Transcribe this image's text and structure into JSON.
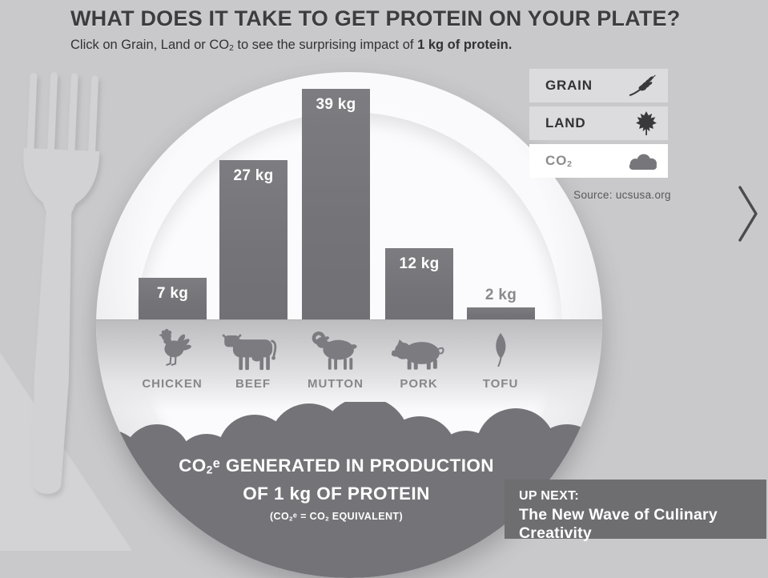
{
  "header": {
    "title": "WHAT DOES IT TAKE TO GET PROTEIN ON YOUR PLATE?",
    "subtitle": {
      "prefix": "Click on Grain, Land or CO",
      "sub": "2",
      "mid": " to see the surprising impact of ",
      "emphasis": "1 kg of protein."
    }
  },
  "legend": {
    "grain": {
      "label": "GRAIN",
      "icon": "wheat-icon",
      "active": false
    },
    "land": {
      "label": "LAND",
      "icon": "maple-leaf-icon",
      "active": false
    },
    "co2": {
      "label_prefix": "CO",
      "label_sub": "2",
      "icon": "cloud-icon",
      "active": true
    }
  },
  "chart_data": {
    "type": "bar",
    "categories": [
      "CHICKEN",
      "BEEF",
      "MUTTON",
      "PORK",
      "TOFU"
    ],
    "values": [
      7,
      27,
      39,
      12,
      2
    ],
    "value_labels": [
      "7 kg",
      "27 kg",
      "39 kg",
      "12 kg",
      "2 kg"
    ],
    "unit": "kg CO2e per 1 kg of protein",
    "icons": [
      "chicken-icon",
      "cow-icon",
      "ram-icon",
      "pig-icon",
      "leaf-icon"
    ],
    "title": "CO2e GENERATED IN PRODUCTION OF 1 kg OF PROTEIN",
    "note": "(CO2e = CO2 EQUIVALENT)",
    "source": "Source: ucsusa.org",
    "ylim": [
      0,
      39
    ],
    "grid": false,
    "legend_position": "none"
  },
  "plate_caption": {
    "l1_pre": "CO",
    "l1_sub": "2",
    "l1_sup": "e",
    "l1_rest": " GENERATED IN PRODUCTION",
    "line2": "OF 1 kg OF PROTEIN",
    "l3_p1": "(CO",
    "l3_s1": "2",
    "l3_sup": "e",
    "l3_p2": " = CO",
    "l3_s2": "2",
    "l3_p3": " EQUIVALENT)"
  },
  "up_next": {
    "kicker": "UP NEXT:",
    "title": "The New Wave of Culinary Creativity"
  },
  "colors": {
    "background": "#c9c9cb",
    "bar": "#75757a",
    "plate": "#fbfbfd",
    "cloud": "#737378",
    "dark_text": "#3d3d3f",
    "muted_text": "#8a8a8e",
    "button_bg": "#dcdcde",
    "active_button_bg": "#ffffff",
    "up_next_bg": "#6e6e71"
  }
}
